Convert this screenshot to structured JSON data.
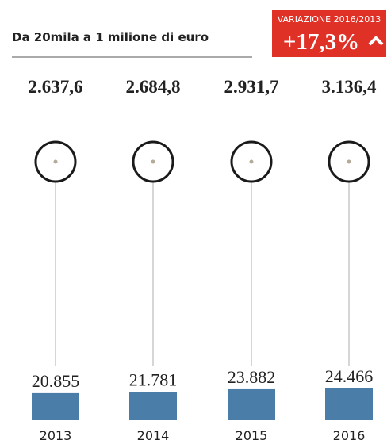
{
  "chart_data": {
    "type": "bar",
    "title": "Da 20mila a 1 milione di euro",
    "badge": {
      "label": "VARIAZIONE 2016/2013",
      "value": 17.3,
      "value_label": "+17,3%"
    },
    "categories": [
      "2013",
      "2014",
      "2015",
      "2016"
    ],
    "top_values": [
      2637.6,
      2684.8,
      2931.7,
      3136.4
    ],
    "top_value_labels": [
      "2.637,6",
      "2.684,8",
      "2.931,7",
      "3.136,4"
    ],
    "values": [
      20855,
      21781,
      23882,
      24466
    ],
    "value_labels": [
      "20.855",
      "21.781",
      "23.882",
      "24.466"
    ],
    "color": "#4a7ea8"
  }
}
